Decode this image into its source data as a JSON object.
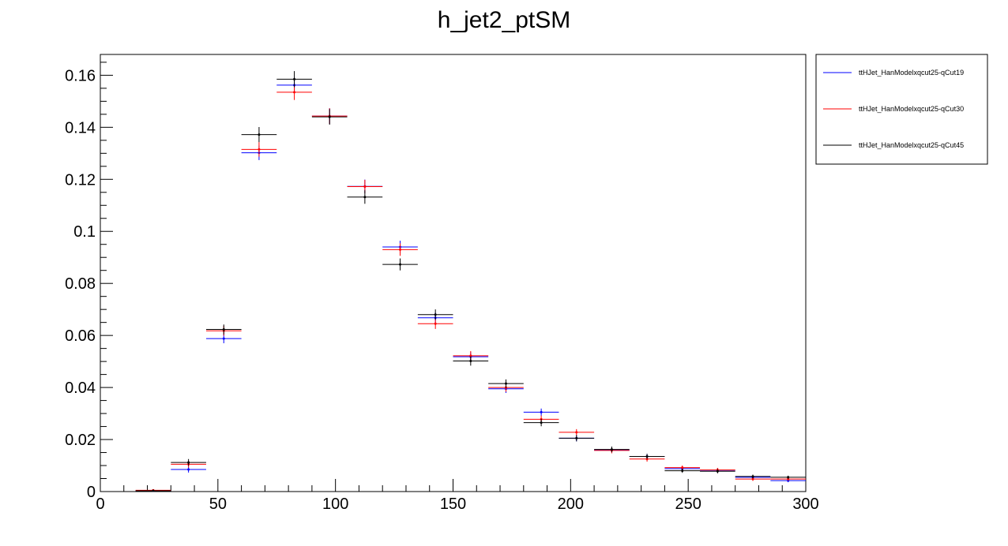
{
  "chart_data": {
    "type": "scatter",
    "title": "h_jet2_ptSM",
    "xlabel": "",
    "ylabel": "",
    "xlim": [
      0,
      300
    ],
    "ylim": [
      0,
      0.168
    ],
    "x_ticks": [
      "0",
      "50",
      "100",
      "150",
      "200",
      "250",
      "300"
    ],
    "y_ticks": [
      "0",
      "0.02",
      "0.04",
      "0.06",
      "0.08",
      "0.1",
      "0.12",
      "0.14",
      "0.16"
    ],
    "bin_width": 15,
    "x": [
      22.5,
      37.5,
      52.5,
      67.5,
      82.5,
      97.5,
      112.5,
      127.5,
      142.5,
      157.5,
      172.5,
      187.5,
      202.5,
      217.5,
      232.5,
      247.5,
      262.5,
      277.5,
      292.5
    ],
    "legend_position": "top-right, outside plot",
    "grid": false,
    "series": [
      {
        "name": "ttHJet_HanModelxqcut25-qCut19",
        "color": "#0000ff",
        "values": [
          0.0003,
          0.0085,
          0.0588,
          0.1302,
          0.1562,
          0.1443,
          0.1173,
          0.094,
          0.0668,
          0.0518,
          0.0395,
          0.0305,
          0.0205,
          0.016,
          0.0135,
          0.0088,
          0.0082,
          0.0055,
          0.0042
        ],
        "errors": [
          0.0003,
          0.0012,
          0.0018,
          0.0028,
          0.003,
          0.003,
          0.0026,
          0.0024,
          0.002,
          0.0018,
          0.0016,
          0.0014,
          0.0012,
          0.0011,
          0.001,
          0.0008,
          0.0008,
          0.0007,
          0.0006
        ]
      },
      {
        "name": "ttHJet_HanModelxqcut25-qCut30",
        "color": "#ff0000",
        "values": [
          0.0005,
          0.0105,
          0.0618,
          0.1315,
          0.1535,
          0.1443,
          0.1172,
          0.093,
          0.0645,
          0.0522,
          0.04,
          0.0278,
          0.0228,
          0.0158,
          0.0125,
          0.0092,
          0.0083,
          0.0048,
          0.0048
        ],
        "errors": [
          0.0004,
          0.0013,
          0.0019,
          0.0028,
          0.003,
          0.003,
          0.0026,
          0.0024,
          0.002,
          0.0018,
          0.0016,
          0.0014,
          0.0012,
          0.0011,
          0.001,
          0.0008,
          0.0008,
          0.0007,
          0.0006
        ]
      },
      {
        "name": "ttHJet_HanModelxqcut25-qCut45",
        "color": "#000000",
        "values": [
          0.0003,
          0.0112,
          0.0623,
          0.1372,
          0.1585,
          0.144,
          0.1132,
          0.0873,
          0.068,
          0.0502,
          0.0415,
          0.0265,
          0.0205,
          0.0162,
          0.0135,
          0.008,
          0.0078,
          0.0058,
          0.0055
        ],
        "errors": [
          0.0003,
          0.0013,
          0.0019,
          0.0029,
          0.0031,
          0.003,
          0.0026,
          0.0023,
          0.002,
          0.0018,
          0.0016,
          0.0014,
          0.0012,
          0.0011,
          0.001,
          0.0008,
          0.0008,
          0.0007,
          0.0006
        ]
      }
    ]
  }
}
